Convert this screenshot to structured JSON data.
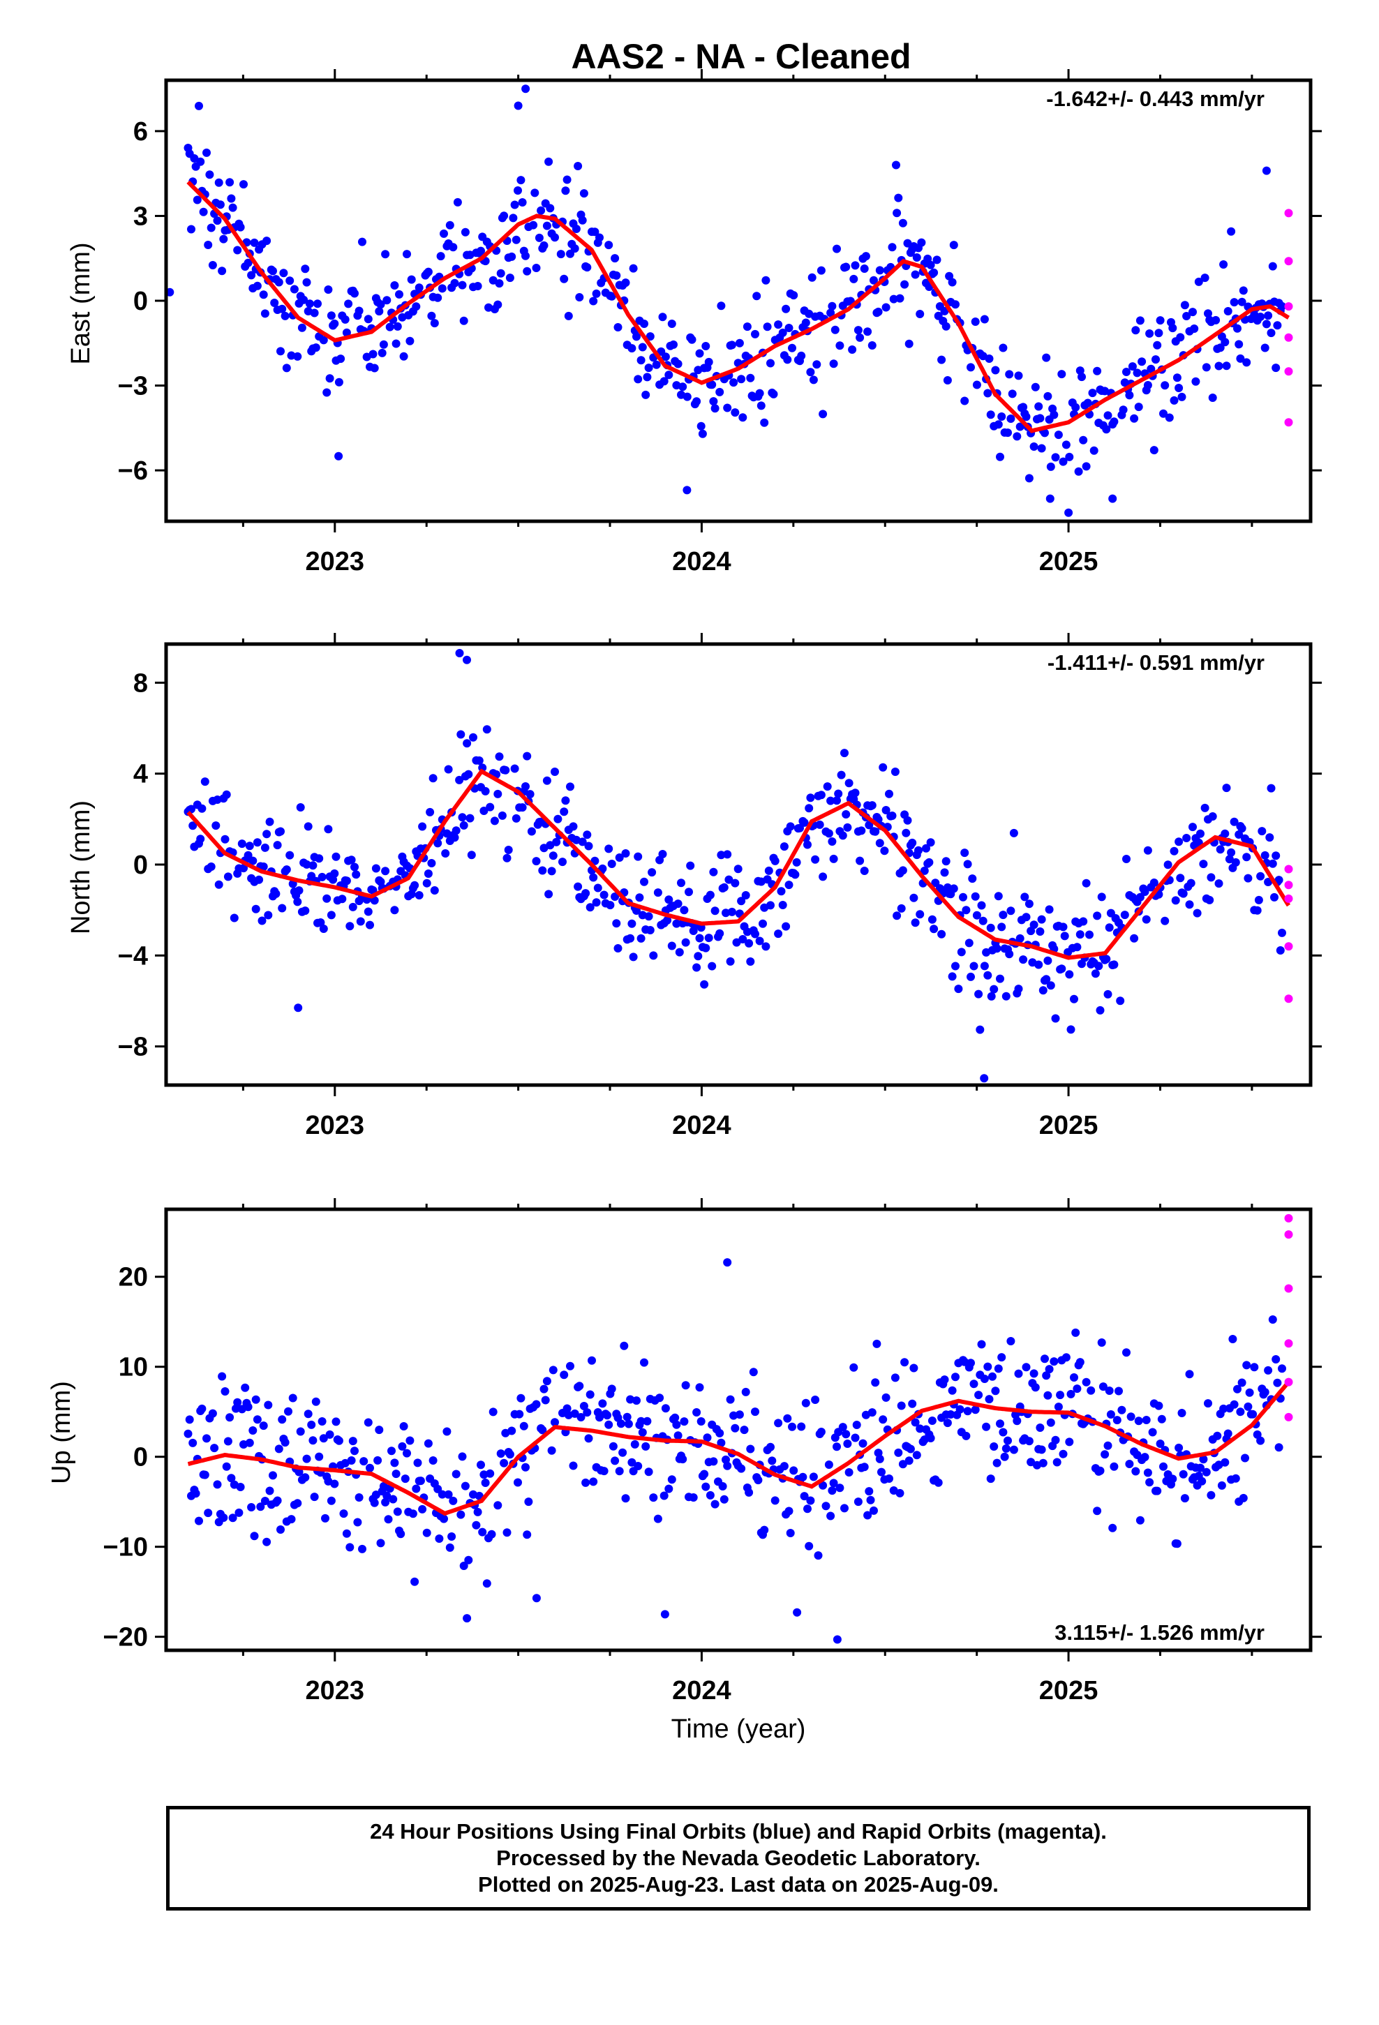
{
  "title": "AAS2  - NA - Cleaned",
  "xlabel": "Time (year)",
  "footer": {
    "line1": "24 Hour Positions Using Final Orbits (blue) and Rapid Orbits (magenta).",
    "line2": "Processed by the Nevada Geodetic Laboratory.",
    "line3": "Plotted on 2025-Aug-23. Last data on 2025-Aug-09."
  },
  "colors": {
    "final": "#0000ff",
    "rapid": "#ff00ff",
    "fit": "#ff0000",
    "frame": "#000000"
  },
  "chart_data": [
    {
      "type": "scatter",
      "ylabel": "East (mm)",
      "rate": "-1.642+/- 0.443 mm/yr",
      "xlim": [
        2022.54,
        2025.66
      ],
      "ylim": [
        -7.8,
        7.8
      ],
      "xticks": [
        2023,
        2024,
        2025
      ],
      "yticks": [
        -6,
        -3,
        0,
        3,
        6
      ],
      "grid": false,
      "fit_curve": [
        [
          2022.6,
          4.2
        ],
        [
          2022.7,
          2.9
        ],
        [
          2022.8,
          1.0
        ],
        [
          2022.9,
          -0.6
        ],
        [
          2023.0,
          -1.4
        ],
        [
          2023.1,
          -1.1
        ],
        [
          2023.2,
          -0.1
        ],
        [
          2023.3,
          0.8
        ],
        [
          2023.4,
          1.5
        ],
        [
          2023.5,
          2.7
        ],
        [
          2023.55,
          3.0
        ],
        [
          2023.6,
          2.9
        ],
        [
          2023.7,
          1.8
        ],
        [
          2023.8,
          -0.5
        ],
        [
          2023.9,
          -2.3
        ],
        [
          2024.0,
          -2.9
        ],
        [
          2024.1,
          -2.4
        ],
        [
          2024.2,
          -1.6
        ],
        [
          2024.3,
          -1.0
        ],
        [
          2024.4,
          -0.3
        ],
        [
          2024.5,
          0.8
        ],
        [
          2024.55,
          1.4
        ],
        [
          2024.6,
          1.2
        ],
        [
          2024.7,
          -0.8
        ],
        [
          2024.8,
          -3.3
        ],
        [
          2024.9,
          -4.6
        ],
        [
          2025.0,
          -4.3
        ],
        [
          2025.1,
          -3.5
        ],
        [
          2025.2,
          -2.8
        ],
        [
          2025.3,
          -2.1
        ],
        [
          2025.4,
          -1.2
        ],
        [
          2025.5,
          -0.3
        ],
        [
          2025.55,
          -0.2
        ],
        [
          2025.6,
          -0.6
        ]
      ],
      "rapid_points": [
        [
          2025.6,
          3.1
        ],
        [
          2025.6,
          1.4
        ],
        [
          2025.6,
          -0.2
        ],
        [
          2025.6,
          -1.3
        ],
        [
          2025.6,
          -2.5
        ],
        [
          2025.6,
          -4.3
        ]
      ],
      "outliers": [
        [
          2022.55,
          0.3
        ],
        [
          2023.01,
          -5.5
        ],
        [
          2023.52,
          7.5
        ],
        [
          2023.5,
          6.9
        ],
        [
          2023.96,
          -6.7
        ],
        [
          2024.53,
          4.8
        ],
        [
          2024.95,
          -7.0
        ],
        [
          2025.0,
          -7.5
        ],
        [
          2025.12,
          -7.0
        ],
        [
          2025.54,
          4.6
        ]
      ]
    },
    {
      "type": "scatter",
      "ylabel": "North (mm)",
      "rate": "-1.411+/- 0.591 mm/yr",
      "xlim": [
        2022.54,
        2025.66
      ],
      "ylim": [
        -9.7,
        9.7
      ],
      "xticks": [
        2023,
        2024,
        2025
      ],
      "yticks": [
        -8,
        -4,
        0,
        4,
        8
      ],
      "grid": false,
      "fit_curve": [
        [
          2022.6,
          2.3
        ],
        [
          2022.7,
          0.5
        ],
        [
          2022.8,
          -0.3
        ],
        [
          2022.9,
          -0.7
        ],
        [
          2023.0,
          -1.0
        ],
        [
          2023.1,
          -1.4
        ],
        [
          2023.2,
          -0.6
        ],
        [
          2023.3,
          1.9
        ],
        [
          2023.4,
          4.1
        ],
        [
          2023.5,
          3.2
        ],
        [
          2023.6,
          1.6
        ],
        [
          2023.7,
          0.0
        ],
        [
          2023.8,
          -1.7
        ],
        [
          2023.9,
          -2.2
        ],
        [
          2024.0,
          -2.6
        ],
        [
          2024.1,
          -2.5
        ],
        [
          2024.2,
          -1.0
        ],
        [
          2024.3,
          1.9
        ],
        [
          2024.4,
          2.7
        ],
        [
          2024.5,
          1.5
        ],
        [
          2024.6,
          -0.5
        ],
        [
          2024.7,
          -2.3
        ],
        [
          2024.8,
          -3.3
        ],
        [
          2024.9,
          -3.6
        ],
        [
          2025.0,
          -4.1
        ],
        [
          2025.1,
          -3.9
        ],
        [
          2025.2,
          -1.9
        ],
        [
          2025.3,
          0.1
        ],
        [
          2025.4,
          1.2
        ],
        [
          2025.5,
          0.8
        ],
        [
          2025.6,
          -1.8
        ]
      ],
      "rapid_points": [
        [
          2025.6,
          -0.2
        ],
        [
          2025.6,
          -0.9
        ],
        [
          2025.6,
          -1.5
        ],
        [
          2025.6,
          -3.6
        ],
        [
          2025.6,
          -5.9
        ]
      ],
      "outliers": [
        [
          2022.9,
          -6.3
        ],
        [
          2023.34,
          9.3
        ],
        [
          2023.36,
          9.0
        ],
        [
          2024.77,
          -9.4
        ],
        [
          2024.79,
          -5.8
        ]
      ]
    },
    {
      "type": "scatter",
      "ylabel": "Up (mm)",
      "rate": "3.115+/- 1.526 mm/yr",
      "xlim": [
        2022.54,
        2025.66
      ],
      "ylim": [
        -21.5,
        27.5
      ],
      "xticks": [
        2023,
        2024,
        2025
      ],
      "yticks": [
        -20,
        -10,
        0,
        10,
        20
      ],
      "grid": false,
      "fit_curve": [
        [
          2022.6,
          -0.8
        ],
        [
          2022.7,
          0.2
        ],
        [
          2022.8,
          -0.3
        ],
        [
          2022.9,
          -1.2
        ],
        [
          2023.0,
          -1.5
        ],
        [
          2023.1,
          -1.9
        ],
        [
          2023.2,
          -4.0
        ],
        [
          2023.3,
          -6.3
        ],
        [
          2023.4,
          -4.9
        ],
        [
          2023.5,
          0.0
        ],
        [
          2023.6,
          3.3
        ],
        [
          2023.7,
          2.9
        ],
        [
          2023.8,
          2.2
        ],
        [
          2023.9,
          1.8
        ],
        [
          2024.0,
          1.7
        ],
        [
          2024.1,
          0.3
        ],
        [
          2024.2,
          -2.0
        ],
        [
          2024.3,
          -3.3
        ],
        [
          2024.4,
          -0.7
        ],
        [
          2024.5,
          2.3
        ],
        [
          2024.6,
          5.1
        ],
        [
          2024.7,
          6.2
        ],
        [
          2024.8,
          5.4
        ],
        [
          2024.9,
          5.0
        ],
        [
          2025.0,
          4.9
        ],
        [
          2025.1,
          3.4
        ],
        [
          2025.2,
          1.4
        ],
        [
          2025.3,
          -0.2
        ],
        [
          2025.4,
          0.5
        ],
        [
          2025.5,
          3.5
        ],
        [
          2025.6,
          8.3
        ]
      ],
      "rapid_points": [
        [
          2025.6,
          26.5
        ],
        [
          2025.6,
          24.7
        ],
        [
          2025.6,
          18.7
        ],
        [
          2025.6,
          12.6
        ],
        [
          2025.6,
          8.3
        ],
        [
          2025.6,
          4.4
        ]
      ],
      "outliers": [
        [
          2023.55,
          -15.7
        ],
        [
          2024.07,
          21.6
        ],
        [
          2024.37,
          -20.3
        ],
        [
          2023.9,
          -17.5
        ],
        [
          2024.26,
          -17.3
        ]
      ]
    }
  ]
}
